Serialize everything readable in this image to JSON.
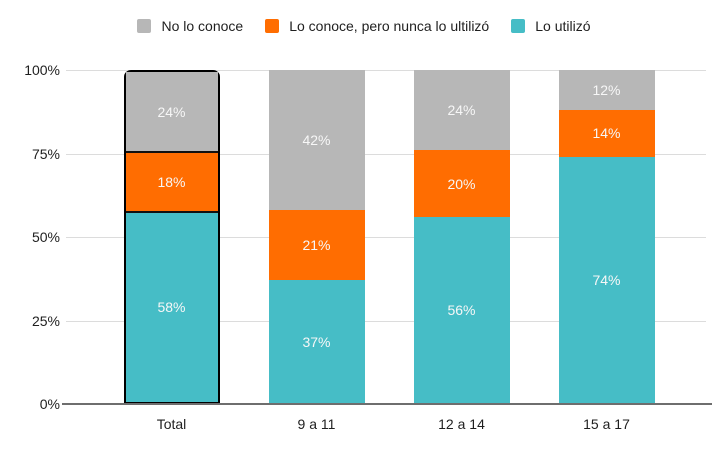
{
  "chart_data": {
    "type": "bar",
    "variant": "stacked-column-100",
    "title": "",
    "categories": [
      "Total",
      "9 a 11",
      "12 a 14",
      "15 a 17"
    ],
    "series": [
      {
        "name": "Lo utilizó",
        "color": "#46bdc6",
        "values": [
          58,
          37,
          56,
          74
        ]
      },
      {
        "name": "Lo conoce, pero nunca lo ultilizó",
        "color": "#ff6d01",
        "values": [
          18,
          21,
          20,
          14
        ]
      },
      {
        "name": "No lo conoce",
        "color": "#b7b7b7",
        "values": [
          24,
          42,
          24,
          12
        ]
      }
    ],
    "data_labels": true,
    "value_suffix": "%",
    "y_axis": {
      "min": 0,
      "max": 100,
      "tick_step": 25,
      "tick_labels": [
        "0%",
        "25%",
        "50%",
        "75%",
        "100%"
      ]
    },
    "x_axis": {
      "tick_labels": [
        "Total",
        "9 a 11",
        "12 a 14",
        "15 a 17"
      ]
    },
    "legend": {
      "position": "top",
      "items": [
        {
          "label": "No lo conoce",
          "color": "#b7b7b7"
        },
        {
          "label": "Lo conoce, pero nunca lo ultilizó",
          "color": "#ff6d01"
        },
        {
          "label": "Lo utilizó",
          "color": "#46bdc6"
        }
      ]
    },
    "grid": true,
    "highlighted_category": "Total",
    "styles": {
      "background": "#ffffff",
      "grid_color": "#dcdcdc",
      "axis_line_color": "#6e6e6e",
      "tick_label_color": "#1f1f1f",
      "bar_label_color": "#f7f7f7",
      "highlight_outline_color": "#000000"
    }
  }
}
